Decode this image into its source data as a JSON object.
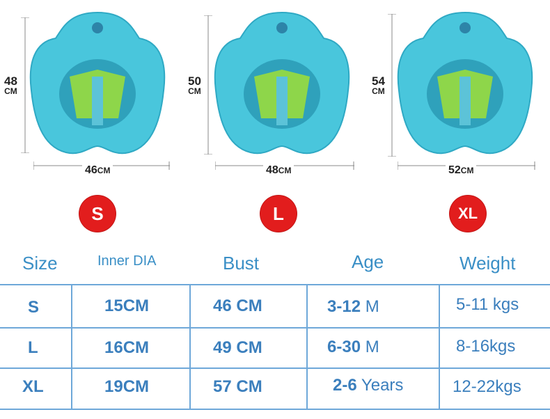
{
  "products": [
    {
      "size_badge": "S",
      "height": "48",
      "height_unit": "CM",
      "width": "46",
      "width_unit": "CM"
    },
    {
      "size_badge": "L",
      "height": "50",
      "height_unit": "CM",
      "width": "48",
      "width_unit": "CM"
    },
    {
      "size_badge": "XL",
      "height": "54",
      "height_unit": "CM",
      "width": "52",
      "width_unit": "CM"
    }
  ],
  "table": {
    "headers": [
      "Size",
      "Inner DIA",
      "Bust",
      "Age",
      "Weight"
    ],
    "rows": [
      {
        "size": "S",
        "inner_dia": "15CM",
        "bust": "46 CM",
        "age_num": "3-12",
        "age_unit": " M",
        "weight": "5-11 kgs"
      },
      {
        "size": "L",
        "inner_dia": "16CM",
        "bust": "49 CM",
        "age_num": "6-30",
        "age_unit": " M",
        "weight": "8-16kgs"
      },
      {
        "size": "XL",
        "inner_dia": "19CM",
        "bust": "57 CM",
        "age_num": "2-6",
        "age_unit": " Years",
        "weight": "12-22kgs"
      }
    ]
  },
  "colors": {
    "badge": "#e21d1d",
    "text": "#3b7fbd",
    "header": "#3a8fc6",
    "grid": "#6ea8d9",
    "ring": "#49c6dc",
    "seat": "#8ed64a"
  }
}
